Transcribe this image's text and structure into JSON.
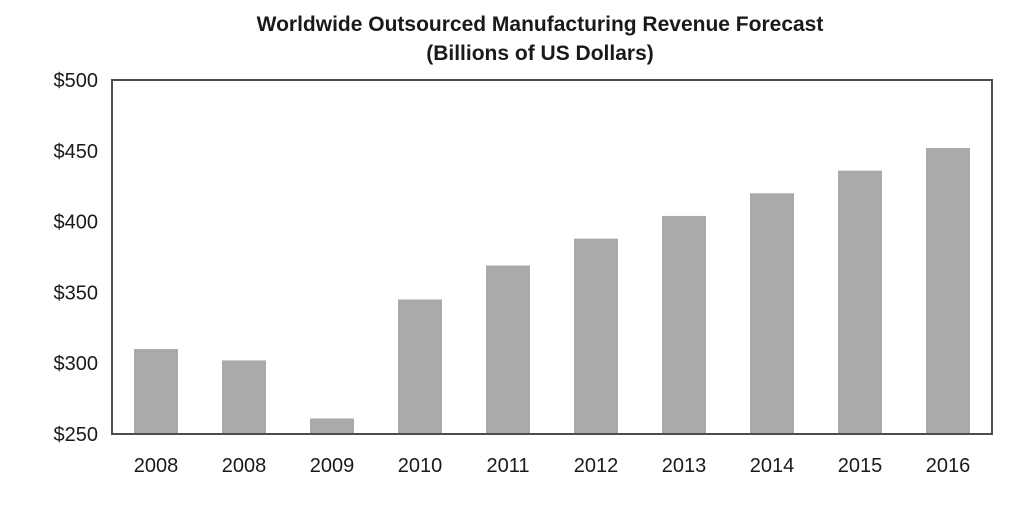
{
  "chart_data": {
    "type": "bar",
    "title": "Worldwide Outsourced Manufacturing Revenue Forecast",
    "subtitle": "(Billions of US Dollars)",
    "xlabel": "",
    "ylabel": "",
    "categories": [
      "2008",
      "2008",
      "2009",
      "2010",
      "2011",
      "2012",
      "2013",
      "2014",
      "2015",
      "2016"
    ],
    "values": [
      310,
      302,
      261,
      345,
      369,
      388,
      404,
      420,
      436,
      452
    ],
    "ylim": [
      250,
      500
    ],
    "yticks": [
      250,
      300,
      350,
      400,
      450,
      500
    ],
    "ytick_labels": [
      "$250",
      "$300",
      "$350",
      "$400",
      "$450",
      "$500"
    ],
    "grid": false,
    "legend": "none",
    "bar_color": "#aaaaaa",
    "frame_color": "#4d4d4d"
  }
}
